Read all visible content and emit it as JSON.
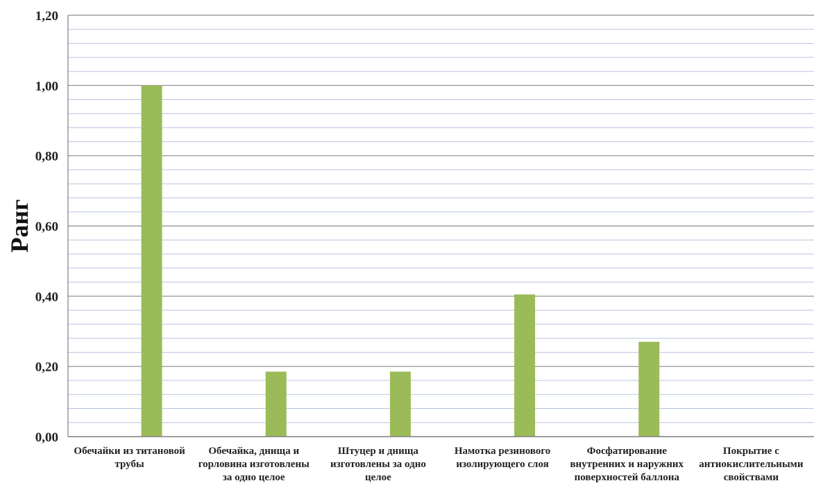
{
  "chart_data": {
    "type": "bar",
    "title": "",
    "xlabel": "",
    "ylabel": "Ранг",
    "categories": [
      "Обечайки из титановой трубы",
      "Обечайка, днища и горловина изготовлены за одно целое",
      "Штуцер и днища изготовлены за одно целое",
      "Намотка резинового изолирующего слоя",
      "Фосфатирование внутренних и наружних поверхностей баллона",
      "Покрытие с антиокислительными свойствами"
    ],
    "values": [
      1.0,
      0.185,
      0.185,
      0.405,
      0.27,
      0.0
    ],
    "ylim": [
      0,
      1.2
    ],
    "yticks": [
      0.0,
      0.2,
      0.4,
      0.6,
      0.8,
      1.0,
      1.2
    ],
    "ytick_labels": [
      "0,00",
      "0,20",
      "0,40",
      "0,60",
      "0,80",
      "1,00",
      "1,20"
    ],
    "grid": true,
    "minor_grid_step": 0.04,
    "legend": "none",
    "colors": {
      "bar": "#9bbb59",
      "major_grid": "#8c8c8c",
      "minor_grid": "#b8c3df",
      "axis": "#7f7f7f"
    }
  }
}
